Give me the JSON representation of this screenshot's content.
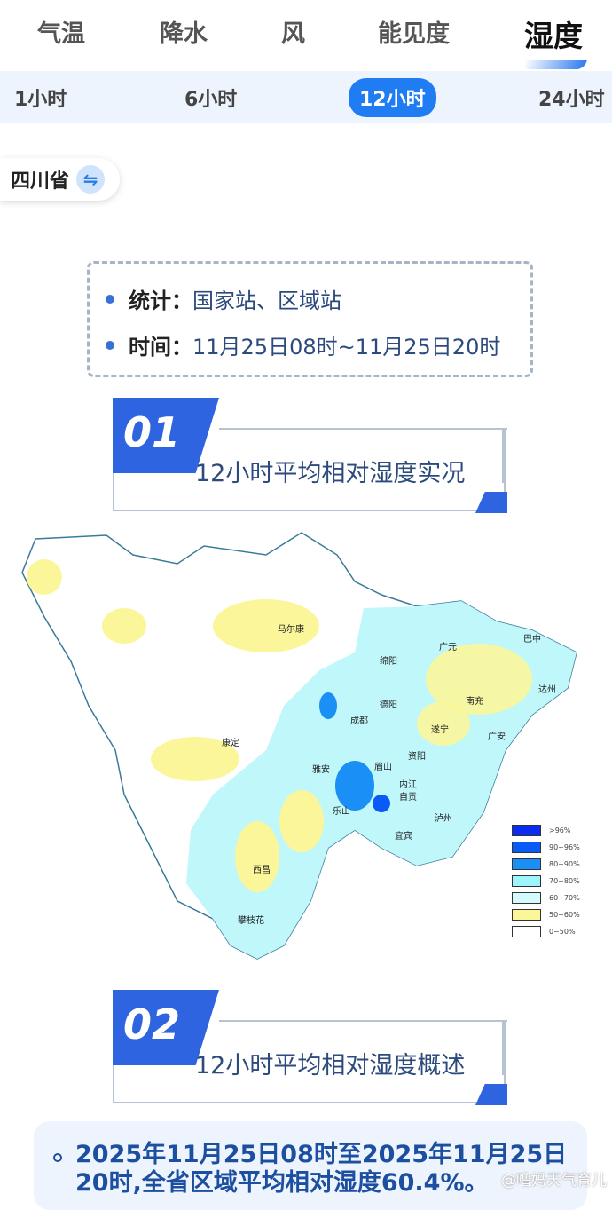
{
  "tabs": [
    {
      "label": "气温"
    },
    {
      "label": "降水"
    },
    {
      "label": "风"
    },
    {
      "label": "能见度"
    },
    {
      "label": "湿度",
      "active": true
    }
  ],
  "periods": [
    {
      "label": "1小时"
    },
    {
      "label": "6小时"
    },
    {
      "label": "12小时",
      "active": true
    },
    {
      "label": "24小时"
    }
  ],
  "region": {
    "label": "四川省",
    "icon": "swap-icon"
  },
  "info": {
    "stat_label": "统计：",
    "stat_value": "国家站、区域站",
    "time_label": "时间：",
    "time_value": "11月25日08时~11月25日20时"
  },
  "section1": {
    "number": "01",
    "title": "12小时平均相对湿度实况"
  },
  "map": {
    "cities": [
      "马尔康",
      "广元",
      "巴中",
      "绵阳",
      "达州",
      "南充",
      "德阳",
      "成都",
      "遂宁",
      "广安",
      "康定",
      "雅安",
      "眉山",
      "资阳",
      "内江",
      "乐山",
      "自贡",
      "泸州",
      "宜宾",
      "西昌",
      "攀枝花"
    ],
    "legend": [
      {
        "label": ">96%",
        "color": "#0a2cf0"
      },
      {
        "label": "90~96%",
        "color": "#0a5af5"
      },
      {
        "label": "80~90%",
        "color": "#1a8ff5"
      },
      {
        "label": "70~80%",
        "color": "#9ef4fb"
      },
      {
        "label": "60~70%",
        "color": "#d3fbfd"
      },
      {
        "label": "50~60%",
        "color": "#fbf69a"
      },
      {
        "label": "0~50%",
        "color": "#ffffff"
      }
    ]
  },
  "section2": {
    "number": "02",
    "title": "12小时平均相对湿度概述"
  },
  "summary": {
    "text": "2025年11月25日08时至2025年11月25日20时,全省区域平均相对湿度60.4%。"
  },
  "watermark": "@噜妈天气育儿"
}
